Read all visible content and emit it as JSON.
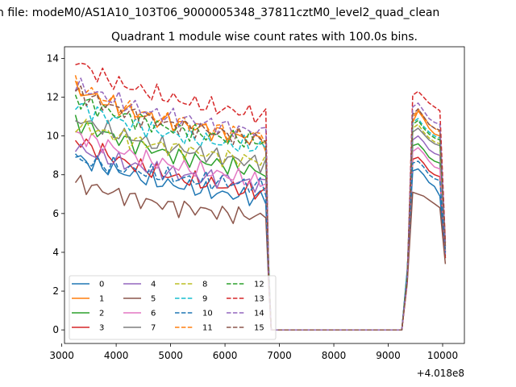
{
  "figure": {
    "suptitle": "n file: modeM0/AS1A10_103T06_9000005348_37811cztM0_level2_quad_clean",
    "title": "Quadrant 1 module wise count rates with 100.0s bins.",
    "offset_text": "+4.018e8"
  },
  "chart_data": {
    "type": "line",
    "title": "Quadrant 1 module wise count rates with 100.0s bins.",
    "xlabel": "",
    "ylabel": "",
    "x_offset": 401800000,
    "xlim": [
      3050,
      10400
    ],
    "ylim": [
      -0.7,
      14.6
    ],
    "xticks": [
      3000,
      4000,
      5000,
      6000,
      7000,
      8000,
      9000,
      10000
    ],
    "yticks": [
      0,
      2,
      4,
      6,
      8,
      10,
      12,
      14
    ],
    "grid": false,
    "legend": {
      "placement": "lower-left",
      "columns": 4
    },
    "gap": {
      "x_start": 6850,
      "x_end": 9250,
      "value": 0
    },
    "segment1": {
      "x_start": 3250,
      "x_end": 6750,
      "n": 36,
      "drop_x": 6800
    },
    "segment2": {
      "x_start": 9350,
      "x_end": 10050,
      "rise_x": 9350
    },
    "series": [
      {
        "name": "0",
        "color": "#1f77b4",
        "dash": "solid",
        "seg1": [
          8.9,
          8.5,
          8.2,
          7.9,
          7.6,
          7.4,
          7.2,
          7.0,
          6.9,
          6.8
        ],
        "seg2": [
          3.1,
          8.2,
          8.3,
          8.0,
          7.6,
          7.4,
          6.9,
          3.7
        ]
      },
      {
        "name": "1",
        "color": "#ff7f0e",
        "dash": "solid",
        "seg1": [
          12.4,
          12.0,
          11.5,
          11.1,
          10.8,
          10.6,
          10.4,
          10.1,
          9.9,
          9.7
        ],
        "seg2": [
          2.6,
          10.7,
          11.3,
          10.9,
          10.4,
          10.1,
          10.0,
          4.0
        ]
      },
      {
        "name": "2",
        "color": "#2ca02c",
        "dash": "solid",
        "seg1": [
          10.7,
          10.3,
          9.9,
          9.5,
          9.2,
          8.9,
          8.7,
          8.5,
          8.3,
          8.1
        ],
        "seg2": [
          2.9,
          9.5,
          9.6,
          9.3,
          8.9,
          8.7,
          8.6,
          3.8
        ]
      },
      {
        "name": "3",
        "color": "#d62728",
        "dash": "solid",
        "seg1": [
          9.8,
          9.3,
          8.8,
          8.4,
          8.1,
          7.8,
          7.6,
          7.4,
          7.2,
          7.1
        ],
        "seg2": [
          2.8,
          8.8,
          8.9,
          8.6,
          8.2,
          8.0,
          7.9,
          3.7
        ]
      },
      {
        "name": "4",
        "color": "#9467bd",
        "dash": "solid",
        "seg1": [
          9.4,
          9.0,
          8.7,
          8.4,
          8.2,
          8.0,
          7.9,
          7.8,
          7.6,
          7.5
        ],
        "seg2": [
          2.8,
          9.8,
          10.0,
          9.7,
          9.3,
          9.1,
          9.0,
          3.9
        ]
      },
      {
        "name": "5",
        "color": "#8c564b",
        "dash": "solid",
        "seg1": [
          7.6,
          7.3,
          7.0,
          6.7,
          6.5,
          6.3,
          6.2,
          6.0,
          5.9,
          5.8
        ],
        "seg2": [
          2.4,
          7.1,
          7.0,
          6.9,
          6.7,
          6.5,
          6.3,
          3.4
        ]
      },
      {
        "name": "6",
        "color": "#e377c2",
        "dash": "solid",
        "seg1": [
          10.1,
          9.7,
          9.3,
          8.9,
          8.6,
          8.4,
          8.2,
          8.0,
          7.8,
          7.6
        ],
        "seg2": [
          2.7,
          9.2,
          9.4,
          9.1,
          8.7,
          8.4,
          8.3,
          4.0
        ]
      },
      {
        "name": "7",
        "color": "#7f7f7f",
        "dash": "solid",
        "seg1": [
          10.9,
          10.5,
          10.1,
          9.8,
          9.5,
          9.3,
          9.1,
          8.9,
          8.7,
          8.6
        ],
        "seg2": [
          2.9,
          10.2,
          10.4,
          10.1,
          9.8,
          9.6,
          9.5,
          4.1
        ]
      },
      {
        "name": "8",
        "color": "#bcbd22",
        "dash": "dashed",
        "seg1": [
          10.6,
          10.3,
          10.0,
          9.7,
          9.5,
          9.3,
          9.1,
          8.9,
          8.8,
          8.7
        ],
        "seg2": [
          2.9,
          10.4,
          10.6,
          10.2,
          9.9,
          9.7,
          9.6,
          4.3
        ]
      },
      {
        "name": "9",
        "color": "#17becf",
        "dash": "dashed",
        "seg1": [
          11.6,
          11.2,
          10.8,
          10.5,
          10.2,
          10.0,
          9.8,
          9.6,
          9.5,
          9.4
        ],
        "seg2": [
          2.9,
          10.7,
          10.9,
          10.5,
          10.2,
          10.0,
          9.9,
          4.4
        ]
      },
      {
        "name": "10",
        "color": "#1f77b4",
        "dash": "dashed",
        "seg1": [
          8.8,
          8.6,
          8.4,
          8.2,
          8.0,
          7.8,
          7.7,
          7.6,
          7.5,
          7.4
        ],
        "seg2": [
          3.0,
          8.6,
          8.7,
          8.4,
          8.0,
          7.8,
          7.7,
          4.0
        ]
      },
      {
        "name": "11",
        "color": "#ff7f0e",
        "dash": "dashed",
        "seg1": [
          12.6,
          12.1,
          11.6,
          11.2,
          10.9,
          10.7,
          10.5,
          10.3,
          10.1,
          10.0
        ],
        "seg2": [
          2.6,
          10.9,
          11.4,
          11.0,
          10.6,
          10.4,
          10.2,
          4.5
        ]
      },
      {
        "name": "12",
        "color": "#2ca02c",
        "dash": "dashed",
        "seg1": [
          11.9,
          11.5,
          11.1,
          10.8,
          10.5,
          10.3,
          10.1,
          9.9,
          9.8,
          9.7
        ],
        "seg2": [
          2.8,
          10.6,
          10.8,
          10.4,
          10.1,
          9.9,
          9.8,
          4.4
        ]
      },
      {
        "name": "13",
        "color": "#d62728",
        "dash": "dashed",
        "seg1": [
          13.9,
          13.2,
          12.7,
          12.4,
          12.1,
          11.8,
          11.6,
          11.4,
          11.2,
          11.0
        ],
        "seg2": [
          2.5,
          12.1,
          12.3,
          12.0,
          11.7,
          11.5,
          11.3,
          4.5
        ]
      },
      {
        "name": "14",
        "color": "#9467bd",
        "dash": "dashed",
        "seg1": [
          12.6,
          12.2,
          11.8,
          11.4,
          11.1,
          10.9,
          10.7,
          10.5,
          10.3,
          10.2
        ],
        "seg2": [
          2.6,
          11.5,
          11.7,
          11.3,
          10.9,
          10.7,
          10.6,
          4.3
        ]
      },
      {
        "name": "15",
        "color": "#8c564b",
        "dash": "dashed",
        "seg1": [
          12.3,
          11.8,
          11.4,
          11.0,
          10.7,
          10.5,
          10.3,
          10.1,
          9.9,
          9.8
        ],
        "seg2": [
          2.5,
          11.1,
          11.4,
          11.0,
          10.6,
          10.4,
          10.3,
          4.2
        ]
      }
    ]
  }
}
